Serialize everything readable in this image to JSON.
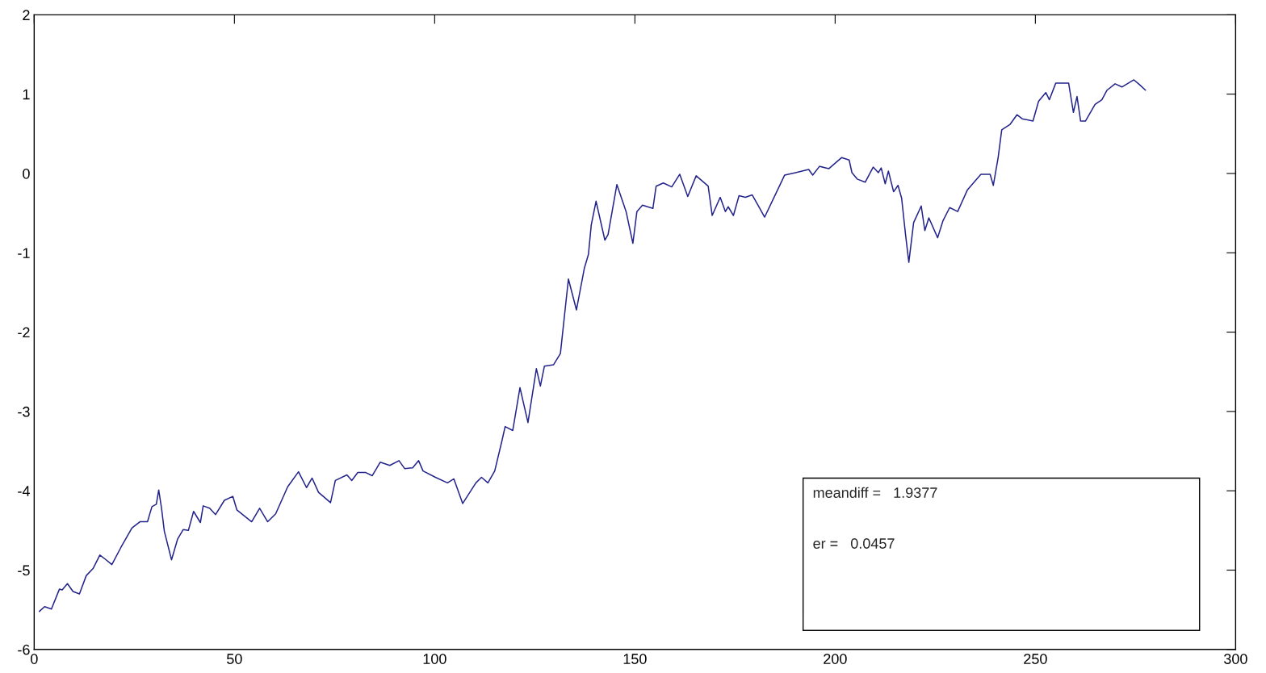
{
  "chart_data": {
    "type": "line",
    "x": [
      1.3,
      2.6,
      4.3,
      6.3,
      7,
      8.3,
      9.7,
      11.3,
      13,
      14.7,
      16.4,
      17.7,
      19.4,
      21.7,
      24.4,
      26.4,
      28.3,
      29.4,
      30.5,
      31.1,
      31.8,
      32.5,
      34.3,
      35.8,
      37.2,
      38.5,
      39.8,
      41.5,
      42.2,
      43.8,
      45.3,
      47.5,
      49.6,
      50.6,
      54.3,
      56.3,
      58.3,
      60.3,
      63.3,
      66,
      68,
      69.4,
      71,
      74,
      75.2,
      78.1,
      79.3,
      80.8,
      82.8,
      84.4,
      86.4,
      88.8,
      91.1,
      92.5,
      94.5,
      96,
      97.1,
      100.2,
      103.2,
      104.8,
      107,
      110.3,
      111.7,
      113.3,
      115,
      116.8,
      117.6,
      119.5,
      121.3,
      123.3,
      125.4,
      126.4,
      127.4,
      129.7,
      131.4,
      132.4,
      133.4,
      135.4,
      137.4,
      138.4,
      139.1,
      140.3,
      142.5,
      143.3,
      145.5,
      147.8,
      149.5,
      150.5,
      151.9,
      154.5,
      155.3,
      157.1,
      159.2,
      161.2,
      163.2,
      165.3,
      168.3,
      169.3,
      171.3,
      172.6,
      173.3,
      174.6,
      176,
      177.6,
      179.3,
      182.4,
      187.4,
      190.1,
      193.4,
      194.4,
      196.1,
      198.4,
      201.6,
      203.5,
      204.2,
      205.5,
      207.5,
      209.5,
      210.8,
      211.5,
      212.5,
      213.3,
      214.6,
      215.7,
      216.6,
      217.6,
      218.4,
      219.6,
      221.5,
      222.4,
      223.4,
      225.6,
      226.9,
      228.6,
      230.6,
      233,
      236.4,
      238.7,
      239.5,
      240.7,
      241.6,
      243.7,
      245.4,
      246.7,
      249.4,
      250.8,
      252.6,
      253.5,
      255.1,
      258.3,
      259.5,
      260.4,
      261.3,
      262.5,
      264.9,
      266.6,
      267.9,
      269.9,
      271.6,
      274.6,
      276,
      277.5
    ],
    "series": [
      {
        "color": "#23238c",
        "values": [
          -5.52,
          -5.46,
          -5.49,
          -5.24,
          -5.25,
          -5.17,
          -5.27,
          -5.3,
          -5.07,
          -4.98,
          -4.81,
          -4.86,
          -4.93,
          -4.71,
          -4.47,
          -4.39,
          -4.39,
          -4.2,
          -4.17,
          -3.99,
          -4.22,
          -4.51,
          -4.87,
          -4.61,
          -4.49,
          -4.5,
          -4.26,
          -4.4,
          -4.19,
          -4.22,
          -4.3,
          -4.12,
          -4.07,
          -4.24,
          -4.39,
          -4.22,
          -4.39,
          -4.29,
          -3.95,
          -3.76,
          -3.96,
          -3.84,
          -4.02,
          -4.15,
          -3.87,
          -3.8,
          -3.87,
          -3.77,
          -3.77,
          -3.81,
          -3.64,
          -3.68,
          -3.62,
          -3.72,
          -3.71,
          -3.62,
          -3.75,
          -3.83,
          -3.9,
          -3.85,
          -4.16,
          -3.9,
          -3.83,
          -3.9,
          -3.75,
          -3.37,
          -3.19,
          -3.24,
          -2.7,
          -3.14,
          -2.46,
          -2.68,
          -2.43,
          -2.41,
          -2.27,
          -1.8,
          -1.33,
          -1.72,
          -1.19,
          -1.02,
          -0.65,
          -0.35,
          -0.84,
          -0.77,
          -0.14,
          -0.48,
          -0.88,
          -0.48,
          -0.4,
          -0.44,
          -0.16,
          -0.12,
          -0.17,
          -0.01,
          -0.29,
          -0.03,
          -0.16,
          -0.53,
          -0.3,
          -0.48,
          -0.42,
          -0.53,
          -0.28,
          -0.3,
          -0.27,
          -0.55,
          -0.02,
          0.01,
          0.05,
          -0.02,
          0.09,
          0.06,
          0.2,
          0.17,
          0.01,
          -0.07,
          -0.11,
          0.08,
          0.01,
          0.07,
          -0.13,
          0.03,
          -0.23,
          -0.15,
          -0.31,
          -0.78,
          -1.12,
          -0.62,
          -0.41,
          -0.72,
          -0.56,
          -0.81,
          -0.6,
          -0.43,
          -0.48,
          -0.21,
          -0.01,
          -0.01,
          -0.15,
          0.2,
          0.55,
          0.62,
          0.74,
          0.69,
          0.66,
          0.91,
          1.02,
          0.93,
          1.14,
          1.14,
          0.77,
          0.97,
          0.66,
          0.66,
          0.87,
          0.93,
          1.05,
          1.13,
          1.09,
          1.18,
          1.12,
          1.05
        ]
      }
    ],
    "xlim": [
      0,
      300
    ],
    "ylim": [
      -6,
      2
    ],
    "xticks": [
      0,
      50,
      100,
      150,
      200,
      250,
      300
    ],
    "yticks": [
      -6,
      -5,
      -4,
      -3,
      -2,
      -1,
      0,
      1,
      2
    ],
    "annotations": [
      "meandiff =   1.9377",
      "er =   0.0457"
    ],
    "grid": false,
    "line_style": "solid",
    "marker": "none"
  }
}
